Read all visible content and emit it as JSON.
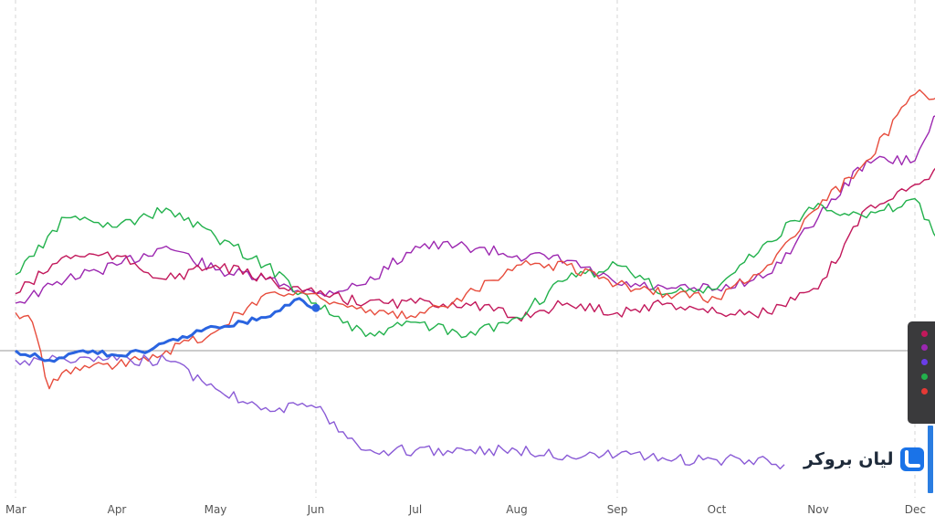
{
  "brand": {
    "text": "لیان بروکر",
    "logo_icon": "rounded-square-logo",
    "logo_color": "#1a73e8"
  },
  "legend": {
    "dot_colors": [
      "#c2185b",
      "#9c27b0",
      "#6a3de8",
      "#22b14c",
      "#e53935"
    ]
  },
  "chart_data": {
    "type": "line",
    "title": "",
    "xlabel": "",
    "ylabel": "",
    "x_ticks": [
      "Mar",
      "Apr",
      "May",
      "Jun",
      "Jul",
      "Aug",
      "Sep",
      "Oct",
      "Nov",
      "Dec"
    ],
    "grid": {
      "vertical_dashed": [
        "Mar",
        "Jun",
        "Sep",
        "Dec"
      ],
      "baseline_line": true
    },
    "ylim": [
      0,
      100
    ],
    "reference_value": 30,
    "series": [
      {
        "color": "#9c27b0",
        "points": [
          [
            "Mar",
            40
          ],
          [
            "Mar 15",
            45
          ],
          [
            "Apr",
            48
          ],
          [
            "Apr 15",
            52
          ],
          [
            "May",
            47
          ],
          [
            "May 15",
            45
          ],
          [
            "Jun",
            42
          ],
          [
            "Jun 15",
            44
          ],
          [
            "Jul",
            52
          ],
          [
            "Jul 15",
            52
          ],
          [
            "Aug",
            50
          ],
          [
            "Aug 15",
            49
          ],
          [
            "Sep",
            44
          ],
          [
            "Sep 15",
            43
          ],
          [
            "Oct",
            43
          ],
          [
            "Oct 15",
            46
          ],
          [
            "Nov",
            58
          ],
          [
            "Nov 15",
            70
          ],
          [
            "Dec",
            70
          ],
          [
            "Dec 10",
            85
          ]
        ]
      },
      {
        "color": "#c2185b",
        "points": [
          [
            "Mar",
            42
          ],
          [
            "Mar 15",
            50
          ],
          [
            "Apr",
            50
          ],
          [
            "Apr 15",
            45
          ],
          [
            "May",
            48
          ],
          [
            "May 15",
            45
          ],
          [
            "Jun",
            42
          ],
          [
            "Jun 15",
            40
          ],
          [
            "Jul",
            40
          ],
          [
            "Jul 15",
            40
          ],
          [
            "Aug",
            37
          ],
          [
            "Aug 15",
            40
          ],
          [
            "Sep",
            38
          ],
          [
            "Sep 15",
            40
          ],
          [
            "Oct",
            38
          ],
          [
            "Oct 15",
            38
          ],
          [
            "Nov",
            43
          ],
          [
            "Nov 15",
            60
          ],
          [
            "Dec",
            65
          ],
          [
            "Dec 10",
            70
          ]
        ]
      },
      {
        "color": "#22b14c",
        "points": [
          [
            "Mar",
            46
          ],
          [
            "Mar 15",
            58
          ],
          [
            "Apr",
            56
          ],
          [
            "Apr 15",
            60
          ],
          [
            "May",
            54
          ],
          [
            "May 15",
            48
          ],
          [
            "Jun",
            40
          ],
          [
            "Jun 15",
            33
          ],
          [
            "Jul",
            36
          ],
          [
            "Jul 15",
            33
          ],
          [
            "Aug",
            37
          ],
          [
            "Aug 15",
            45
          ],
          [
            "Sep",
            48
          ],
          [
            "Sep 15",
            42
          ],
          [
            "Oct",
            43
          ],
          [
            "Oct 15",
            53
          ],
          [
            "Nov",
            61
          ],
          [
            "Nov 15",
            58
          ],
          [
            "Dec",
            62
          ],
          [
            "Dec 10",
            50
          ]
        ]
      },
      {
        "color": "#e74c3c",
        "points": [
          [
            "Mar",
            38
          ],
          [
            "Mar 5",
            36
          ],
          [
            "Mar 10",
            22
          ],
          [
            "Mar 15",
            26
          ],
          [
            "Apr",
            27
          ],
          [
            "Apr 15",
            30
          ],
          [
            "May",
            34
          ],
          [
            "May 15",
            42
          ],
          [
            "Jun",
            42
          ],
          [
            "Jun 15",
            38
          ],
          [
            "Jul",
            37
          ],
          [
            "Jul 15",
            42
          ],
          [
            "Aug",
            48
          ],
          [
            "Aug 15",
            48
          ],
          [
            "Sep",
            44
          ],
          [
            "Sep 15",
            42
          ],
          [
            "Oct",
            41
          ],
          [
            "Oct 15",
            48
          ],
          [
            "Nov",
            60
          ],
          [
            "Nov 15",
            70
          ],
          [
            "Dec",
            84
          ],
          [
            "Dec 10",
            84
          ]
        ]
      },
      {
        "color": "#8a5bd6",
        "points": [
          [
            "Mar",
            28
          ],
          [
            "Mar 15",
            28
          ],
          [
            "Apr",
            28
          ],
          [
            "Apr 15",
            28
          ],
          [
            "May",
            22
          ],
          [
            "May 15",
            18
          ],
          [
            "Jun",
            18
          ],
          [
            "Jun 15",
            9
          ],
          [
            "Jul",
            9
          ],
          [
            "Jul 15",
            9
          ],
          [
            "Aug",
            9
          ],
          [
            "Aug 15",
            8
          ],
          [
            "Sep",
            8
          ],
          [
            "Sep 15",
            7
          ],
          [
            "Oct",
            7
          ],
          [
            "Oct 15",
            7
          ],
          [
            "Oct 20",
            6
          ]
        ]
      },
      {
        "color": "#2a64e0",
        "highlight": true,
        "points": [
          [
            "Mar",
            30
          ],
          [
            "Mar 10",
            28
          ],
          [
            "Mar 20",
            30
          ],
          [
            "Apr",
            29
          ],
          [
            "Apr 10",
            30
          ],
          [
            "Apr 20",
            33
          ],
          [
            "May",
            35
          ],
          [
            "May 15",
            37
          ],
          [
            "May 25",
            41
          ],
          [
            "Jun",
            39
          ]
        ]
      }
    ]
  }
}
